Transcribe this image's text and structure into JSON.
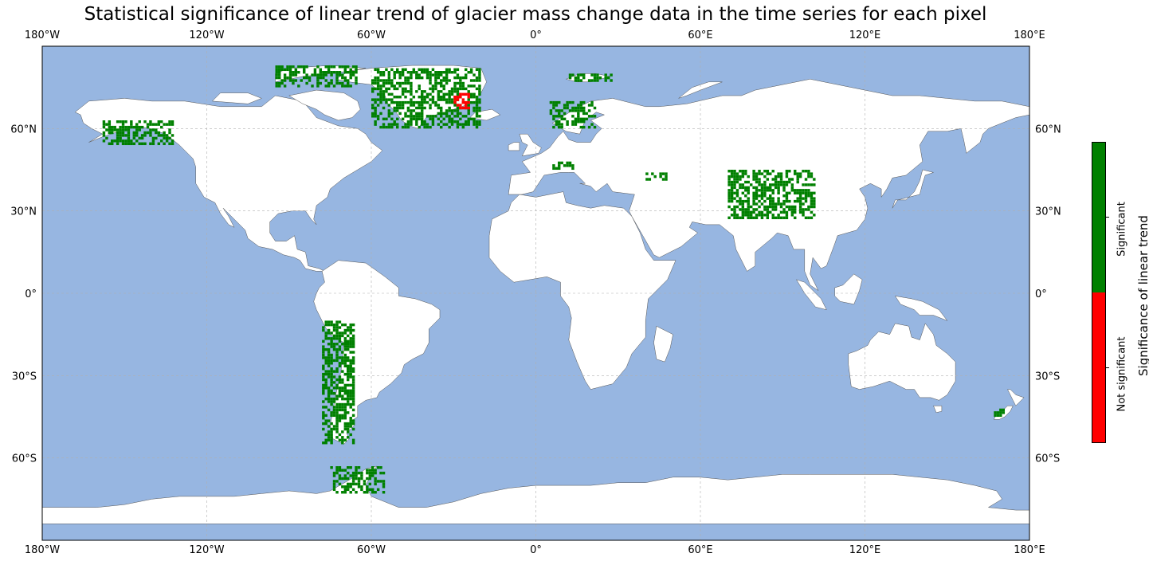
{
  "title": "Statistical significance of linear trend of glacier mass change data in the time series for each pixel",
  "axes": {
    "lon_ticks": [
      "180°W",
      "120°W",
      "60°W",
      "0°",
      "60°E",
      "120°E",
      "180°E"
    ],
    "lon_values": [
      -180,
      -120,
      -60,
      0,
      60,
      120,
      180
    ],
    "lat_ticks": [
      "60°N",
      "30°N",
      "0°",
      "30°S",
      "60°S"
    ],
    "lat_values": [
      60,
      30,
      0,
      -30,
      -60
    ],
    "lon_range": [
      -180,
      180
    ],
    "lat_range": [
      -90,
      90
    ],
    "gridlines": true
  },
  "colorbar": {
    "label": "Significance of linear trend",
    "categories": [
      {
        "label": "Not significant",
        "color": "#ff0000"
      },
      {
        "label": "Significant",
        "color": "#008000"
      }
    ]
  },
  "colors": {
    "ocean": "#97b6e1",
    "land": "#ffffff",
    "significant": "#008000",
    "not_significant": "#ff0000",
    "grid": "#b0b0b0"
  },
  "chart_data": {
    "type": "heatmap",
    "projection": "PlateCarree",
    "title": "Statistical significance of linear trend of glacier mass change data in the time series for each pixel",
    "regions": [
      {
        "name": "Alaska",
        "lon": [
          -158,
          -132
        ],
        "lat": [
          54,
          63
        ],
        "class": "significant"
      },
      {
        "name": "Canadian Arctic",
        "lon": [
          -95,
          -65
        ],
        "lat": [
          75,
          83
        ],
        "class": "significant"
      },
      {
        "name": "Greenland",
        "lon": [
          -60,
          -20
        ],
        "lat": [
          60,
          82
        ],
        "class": "significant"
      },
      {
        "name": "Svalbard",
        "lon": [
          12,
          28
        ],
        "lat": [
          77,
          80
        ],
        "class": "significant"
      },
      {
        "name": "Scandinavia",
        "lon": [
          5,
          22
        ],
        "lat": [
          60,
          70
        ],
        "class": "significant"
      },
      {
        "name": "Alps",
        "lon": [
          6,
          14
        ],
        "lat": [
          45,
          47.5
        ],
        "class": "significant"
      },
      {
        "name": "Caucasus",
        "lon": [
          40,
          48
        ],
        "lat": [
          41,
          44
        ],
        "class": "significant"
      },
      {
        "name": "High Mountain Asia",
        "lon": [
          70,
          102
        ],
        "lat": [
          27,
          45
        ],
        "class": "significant"
      },
      {
        "name": "Andes",
        "lon": [
          -78,
          -66
        ],
        "lat": [
          -55,
          -10
        ],
        "class": "significant"
      },
      {
        "name": "New Zealand",
        "lon": [
          167,
          172
        ],
        "lat": [
          -45,
          -42
        ],
        "class": "significant"
      },
      {
        "name": "Antarctic Peninsula",
        "lon": [
          -75,
          -55
        ],
        "lat": [
          -73,
          -63
        ],
        "class": "significant"
      },
      {
        "name": "Greenland SE",
        "lon": [
          -30,
          -24
        ],
        "lat": [
          67,
          73
        ],
        "class": "not_significant"
      }
    ]
  }
}
